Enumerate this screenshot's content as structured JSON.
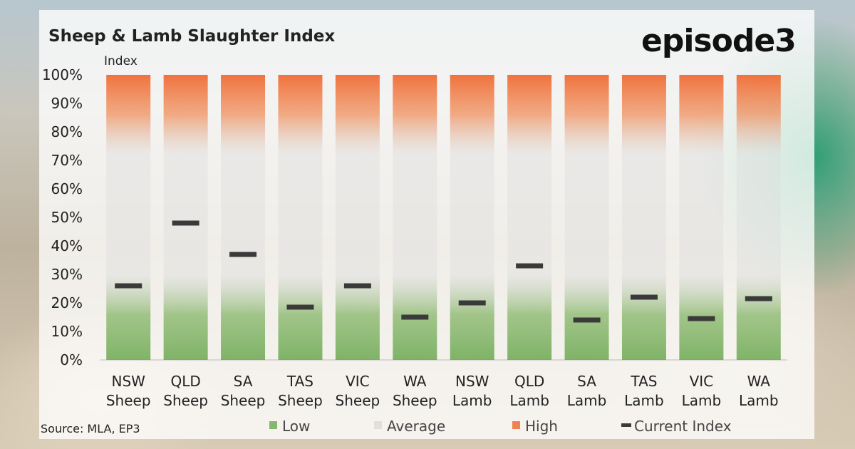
{
  "title": "Sheep & Lamb Slaughter Index",
  "logo": "episode3",
  "source": "Source: MLA, EP3",
  "chart_data": {
    "type": "bar",
    "title": "Sheep & Lamb Slaughter Index",
    "ylabel": "Index",
    "ylim": [
      0,
      100
    ],
    "y_ticks": [
      "0%",
      "10%",
      "20%",
      "30%",
      "40%",
      "50%",
      "60%",
      "70%",
      "80%",
      "90%",
      "100%"
    ],
    "categories": [
      [
        "NSW",
        "Sheep"
      ],
      [
        "QLD",
        "Sheep"
      ],
      [
        "SA",
        "Sheep"
      ],
      [
        "TAS",
        "Sheep"
      ],
      [
        "VIC",
        "Sheep"
      ],
      [
        "WA",
        "Sheep"
      ],
      [
        "NSW",
        "Lamb"
      ],
      [
        "QLD",
        "Lamb"
      ],
      [
        "SA",
        "Lamb"
      ],
      [
        "TAS",
        "Lamb"
      ],
      [
        "VIC",
        "Lamb"
      ],
      [
        "WA",
        "Lamb"
      ]
    ],
    "bands": [
      {
        "name": "Low",
        "from": 0,
        "to": 20,
        "color": "#6aa84f"
      },
      {
        "name": "Average",
        "from": 20,
        "to": 80,
        "color": "#d9d9d9"
      },
      {
        "name": "High",
        "from": 80,
        "to": 100,
        "color": "#f0642a"
      }
    ],
    "series": [
      {
        "name": "Current Index",
        "color": "#3a3a3a",
        "values": [
          26,
          48,
          37,
          18.5,
          26,
          15,
          20,
          33,
          14,
          22,
          14.5,
          21.5
        ]
      }
    ],
    "legend": {
      "position": "bottom",
      "items": [
        {
          "label": "Low",
          "color": "#6aa84f",
          "marker": "square"
        },
        {
          "label": "Average",
          "color": "#d9d9d9",
          "marker": "square"
        },
        {
          "label": "High",
          "color": "#f0642a",
          "marker": "square"
        },
        {
          "label": "Current Index",
          "color": "#3a3a3a",
          "marker": "dash"
        }
      ]
    },
    "grid": false
  }
}
